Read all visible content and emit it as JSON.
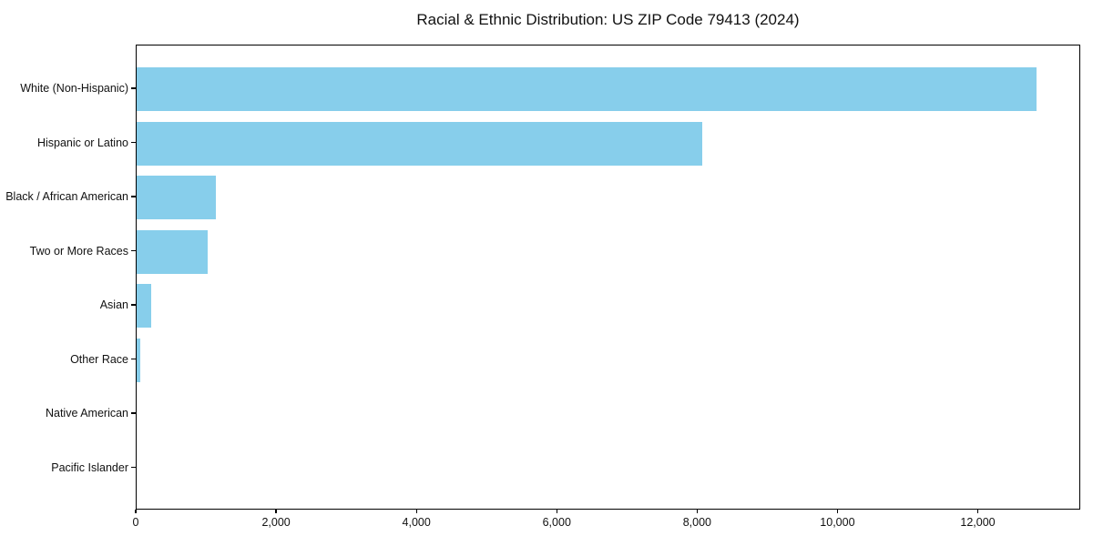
{
  "chart_data": {
    "type": "bar",
    "orientation": "horizontal",
    "title": "Racial & Ethnic Distribution: US ZIP Code 79413 (2024)",
    "categories": [
      "White (Non-Hispanic)",
      "Hispanic or Latino",
      "Black / African American",
      "Two or More Races",
      "Asian",
      "Other Race",
      "Native American",
      "Pacific Islander"
    ],
    "values": [
      12820,
      8060,
      1130,
      1010,
      210,
      50,
      0,
      0
    ],
    "xlabel": "",
    "ylabel": "",
    "xlim": [
      0,
      13460
    ],
    "xticks": {
      "values": [
        0,
        2000,
        4000,
        6000,
        8000,
        10000,
        12000
      ],
      "labels": [
        "0",
        "2,000",
        "4,000",
        "6,000",
        "8,000",
        "10,000",
        "12,000"
      ]
    },
    "bar_color": "#87ceeb",
    "axis_color": "#000000",
    "background": "#ffffff",
    "grid": false,
    "legend": null
  }
}
